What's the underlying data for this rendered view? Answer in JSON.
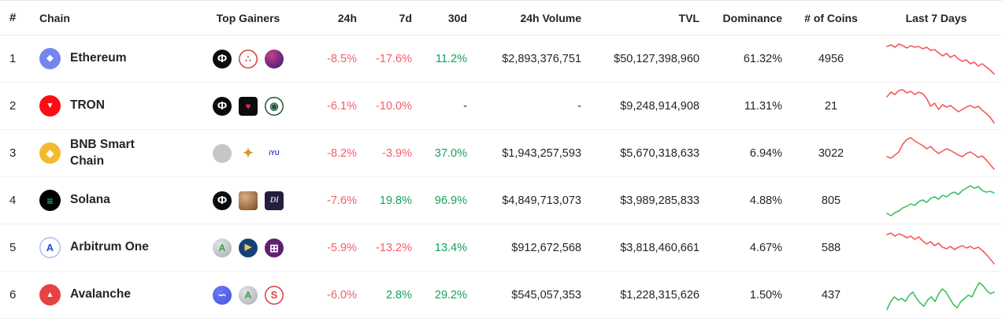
{
  "colors": {
    "negative": "#f35d68",
    "positive": "#16a15f",
    "neutral": "#212529",
    "spark_negative": "#f65958",
    "spark_positive": "#3cc261"
  },
  "columns": [
    "#",
    "Chain",
    "Top Gainers",
    "24h",
    "7d",
    "30d",
    "24h Volume",
    "TVL",
    "Dominance",
    "# of Coins",
    "Last 7 Days"
  ],
  "rows": [
    {
      "rank": "1",
      "name": "Ethereum",
      "icon": {
        "name": "ethereum-icon",
        "glyph": "◆",
        "bg": "#7187ee",
        "fg": "#ffffff",
        "shape": "circle",
        "size": 11
      },
      "gainers": [
        {
          "glyph": "Φ",
          "bg": "#0b0b0b",
          "fg": "#ffffff",
          "shape": "circle",
          "size": 15
        },
        {
          "glyph": "∴",
          "bg": "#ffffff",
          "fg": "#cf4436",
          "border": "#cf4436",
          "shape": "circle",
          "size": 12
        },
        {
          "glyph": "",
          "bg": "#c93f8d",
          "bg2": "#2c1a6e",
          "shape": "circle"
        }
      ],
      "h24": "-8.5%",
      "d7": "-17.6%",
      "d30": "11.2%",
      "volume": "$2,893,376,751",
      "tvl": "$50,127,398,960",
      "dominance": "61.32%",
      "coins": "4956",
      "sparkline": {
        "trend": "down",
        "points": [
          8,
          6,
          9,
          5,
          7,
          10,
          7,
          9,
          8,
          11,
          9,
          13,
          12,
          16,
          20,
          17,
          22,
          19,
          24,
          27,
          25,
          30,
          28,
          33,
          30,
          34,
          38,
          43
        ]
      }
    },
    {
      "rank": "2",
      "name": "TRON",
      "icon": {
        "name": "tron-icon",
        "glyph": "▼",
        "bg": "#ff0b15",
        "fg": "#ffffff",
        "shape": "circle",
        "size": 10
      },
      "gainers": [
        {
          "glyph": "Φ",
          "bg": "#0b0b0b",
          "fg": "#ffffff",
          "shape": "circle",
          "size": 15
        },
        {
          "glyph": "♥",
          "bg": "#0c0c0c",
          "fg": "#e8274b",
          "shape": "square",
          "size": 12
        },
        {
          "glyph": "◉",
          "bg": "#ffffff",
          "fg": "#1f5c39",
          "border": "#1f5c39",
          "shape": "circle",
          "size": 13
        }
      ],
      "h24": "-6.1%",
      "d7": "-10.0%",
      "d30": "-",
      "volume": "-",
      "tvl": "$9,248,914,908",
      "dominance": "11.31%",
      "coins": "21",
      "sparkline": {
        "trend": "down",
        "points": [
          12,
          6,
          9,
          4,
          3,
          7,
          5,
          9,
          6,
          8,
          14,
          24,
          20,
          28,
          22,
          25,
          23,
          27,
          31,
          28,
          25,
          23,
          26,
          24,
          29,
          33,
          38,
          45
        ]
      }
    },
    {
      "rank": "3",
      "name": "BNB Smart Chain",
      "icon": {
        "name": "bnb-smart-chain-icon",
        "glyph": "◈",
        "bg": "#f3ba2f",
        "fg": "#ffffff",
        "shape": "circle",
        "size": 13
      },
      "gainers": [
        {
          "glyph": "",
          "bg": "#c6c6c6",
          "shape": "circle"
        },
        {
          "glyph": "✦",
          "bg": "transparent",
          "fg": "#d79a27",
          "shape": "circle",
          "size": 17
        },
        {
          "glyph": "iYU",
          "bg": "#ffffff",
          "fg": "#2f36c9",
          "shape": "square",
          "size": 8
        }
      ],
      "h24": "-8.2%",
      "d7": "-3.9%",
      "d30": "37.0%",
      "volume": "$1,943,257,593",
      "tvl": "$5,670,318,633",
      "dominance": "6.94%",
      "coins": "3022",
      "sparkline": {
        "trend": "down",
        "points": [
          28,
          30,
          26,
          22,
          12,
          6,
          4,
          8,
          11,
          14,
          18,
          15,
          20,
          24,
          21,
          18,
          20,
          23,
          26,
          28,
          24,
          22,
          25,
          29,
          27,
          32,
          38,
          44
        ]
      }
    },
    {
      "rank": "4",
      "name": "Solana",
      "icon": {
        "name": "solana-icon",
        "glyph": "≡",
        "bg": "#000000",
        "fg": "#14f195",
        "shape": "circle",
        "size": 14
      },
      "gainers": [
        {
          "glyph": "Φ",
          "bg": "#0b0b0b",
          "fg": "#ffffff",
          "shape": "circle",
          "size": 15
        },
        {
          "glyph": "",
          "bg": "#d8b184",
          "bg2": "#7a4a23",
          "shape": "square"
        },
        {
          "glyph": "Dl",
          "bg": "#251d3d",
          "fg": "#cdc3f0",
          "shape": "square",
          "size": 11,
          "italic": true
        }
      ],
      "h24": "-7.6%",
      "d7": "19.8%",
      "d30": "96.9%",
      "volume": "$4,849,713,073",
      "tvl": "$3,989,285,833",
      "dominance": "4.88%",
      "coins": "805",
      "sparkline": {
        "trend": "up",
        "points": [
          40,
          43,
          39,
          37,
          33,
          31,
          28,
          30,
          25,
          23,
          26,
          21,
          19,
          22,
          17,
          19,
          15,
          13,
          16,
          11,
          8,
          5,
          8,
          6,
          11,
          13,
          12,
          14
        ]
      }
    },
    {
      "rank": "5",
      "name": "Arbitrum One",
      "icon": {
        "name": "arbitrum-icon",
        "glyph": "A",
        "bg": "#ffffff",
        "fg": "#2949d4",
        "border": "#aabef7",
        "shape": "circle",
        "size": 13
      },
      "gainers": [
        {
          "glyph": "A",
          "bg": "#e3e3e3",
          "bg2": "#a9aeb3",
          "fg": "#2f9e44",
          "shape": "circle",
          "size": 12
        },
        {
          "glyph": "▶",
          "bg": "#16407c",
          "fg": "#f5c64a",
          "shape": "circle",
          "size": 11
        },
        {
          "glyph": "⊞",
          "bg": "#5f2170",
          "fg": "#ffffff",
          "shape": "circle",
          "size": 14
        }
      ],
      "h24": "-5.9%",
      "d7": "-13.2%",
      "d30": "13.4%",
      "volume": "$912,672,568",
      "tvl": "$3,818,460,661",
      "dominance": "4.67%",
      "coins": "588",
      "sparkline": {
        "trend": "down",
        "points": [
          7,
          5,
          9,
          6,
          8,
          11,
          9,
          13,
          10,
          15,
          19,
          16,
          21,
          18,
          23,
          25,
          22,
          26,
          23,
          21,
          24,
          22,
          25,
          23,
          27,
          32,
          38,
          44
        ]
      }
    },
    {
      "rank": "6",
      "name": "Avalanche",
      "icon": {
        "name": "avalanche-icon",
        "glyph": "▲",
        "bg": "#e84142",
        "fg": "#ffffff",
        "shape": "circle",
        "size": 10
      },
      "gainers": [
        {
          "glyph": "∽",
          "bg": "#6a77f2",
          "bg2": "#4553e6",
          "fg": "#ffffff",
          "shape": "circle",
          "size": 13
        },
        {
          "glyph": "A",
          "bg": "#e3e3e3",
          "bg2": "#a9aeb3",
          "fg": "#2f9e44",
          "shape": "circle",
          "size": 12
        },
        {
          "glyph": "S",
          "bg": "#ffffff",
          "fg": "#dd3b41",
          "border": "#dd3b41",
          "shape": "circle",
          "size": 13
        }
      ],
      "h24": "-6.0%",
      "d7": "2.8%",
      "d30": "29.2%",
      "volume": "$545,057,353",
      "tvl": "$1,228,315,626",
      "dominance": "1.50%",
      "coins": "437",
      "sparkline": {
        "trend": "up",
        "points": [
          42,
          32,
          26,
          30,
          28,
          32,
          24,
          20,
          28,
          34,
          38,
          30,
          26,
          32,
          22,
          16,
          20,
          28,
          36,
          40,
          32,
          28,
          24,
          26,
          16,
          8,
          12,
          18,
          22,
          20
        ]
      }
    }
  ]
}
